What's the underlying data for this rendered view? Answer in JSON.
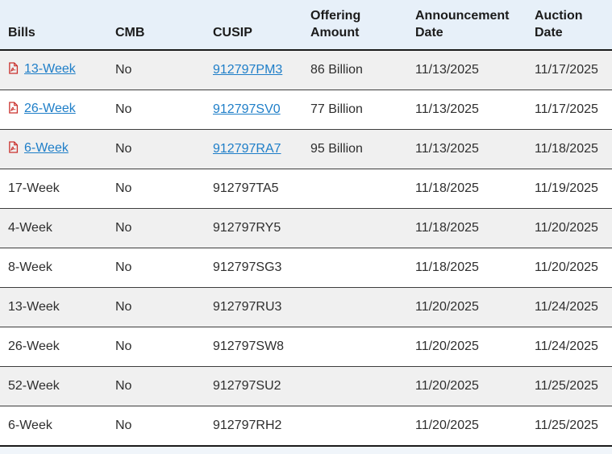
{
  "colors": {
    "header_bg": "#e7f0f9",
    "row_alt_bg": "#f0f0f0",
    "row_bg": "#ffffff",
    "header_border": "#1b1b1b",
    "row_border": "#3d3d3d",
    "link": "#1e7ec8",
    "text": "#2e2e2e",
    "pdf_icon_red": "#c9302c"
  },
  "table": {
    "columns": [
      {
        "label": "Bills"
      },
      {
        "label": "CMB"
      },
      {
        "label": "CUSIP"
      },
      {
        "label": "Offering Amount"
      },
      {
        "label": "Announcement Date"
      },
      {
        "label": "Auction Date"
      }
    ],
    "pdf_icon_name": "pdf-file-icon",
    "rows": [
      {
        "bills": "13-Week",
        "bills_is_link": true,
        "has_pdf_icon": true,
        "cmb": "No",
        "cusip": "912797PM3",
        "cusip_is_link": true,
        "offering_amount": "86 Billion",
        "announcement_date": "11/13/2025",
        "auction_date": "11/17/2025"
      },
      {
        "bills": "26-Week",
        "bills_is_link": true,
        "has_pdf_icon": true,
        "cmb": "No",
        "cusip": "912797SV0",
        "cusip_is_link": true,
        "offering_amount": "77 Billion",
        "announcement_date": "11/13/2025",
        "auction_date": "11/17/2025"
      },
      {
        "bills": "6-Week",
        "bills_is_link": true,
        "has_pdf_icon": true,
        "cmb": "No",
        "cusip": "912797RA7",
        "cusip_is_link": true,
        "offering_amount": "95 Billion",
        "announcement_date": "11/13/2025",
        "auction_date": "11/18/2025"
      },
      {
        "bills": "17-Week",
        "bills_is_link": false,
        "has_pdf_icon": false,
        "cmb": "No",
        "cusip": "912797TA5",
        "cusip_is_link": false,
        "offering_amount": "",
        "announcement_date": "11/18/2025",
        "auction_date": "11/19/2025"
      },
      {
        "bills": "4-Week",
        "bills_is_link": false,
        "has_pdf_icon": false,
        "cmb": "No",
        "cusip": "912797RY5",
        "cusip_is_link": false,
        "offering_amount": "",
        "announcement_date": "11/18/2025",
        "auction_date": "11/20/2025"
      },
      {
        "bills": "8-Week",
        "bills_is_link": false,
        "has_pdf_icon": false,
        "cmb": "No",
        "cusip": "912797SG3",
        "cusip_is_link": false,
        "offering_amount": "",
        "announcement_date": "11/18/2025",
        "auction_date": "11/20/2025"
      },
      {
        "bills": "13-Week",
        "bills_is_link": false,
        "has_pdf_icon": false,
        "cmb": "No",
        "cusip": "912797RU3",
        "cusip_is_link": false,
        "offering_amount": "",
        "announcement_date": "11/20/2025",
        "auction_date": "11/24/2025"
      },
      {
        "bills": "26-Week",
        "bills_is_link": false,
        "has_pdf_icon": false,
        "cmb": "No",
        "cusip": "912797SW8",
        "cusip_is_link": false,
        "offering_amount": "",
        "announcement_date": "11/20/2025",
        "auction_date": "11/24/2025"
      },
      {
        "bills": "52-Week",
        "bills_is_link": false,
        "has_pdf_icon": false,
        "cmb": "No",
        "cusip": "912797SU2",
        "cusip_is_link": false,
        "offering_amount": "",
        "announcement_date": "11/20/2025",
        "auction_date": "11/25/2025"
      },
      {
        "bills": "6-Week",
        "bills_is_link": false,
        "has_pdf_icon": false,
        "cmb": "No",
        "cusip": "912797RH2",
        "cusip_is_link": false,
        "offering_amount": "",
        "announcement_date": "11/20/2025",
        "auction_date": "11/25/2025"
      }
    ]
  }
}
